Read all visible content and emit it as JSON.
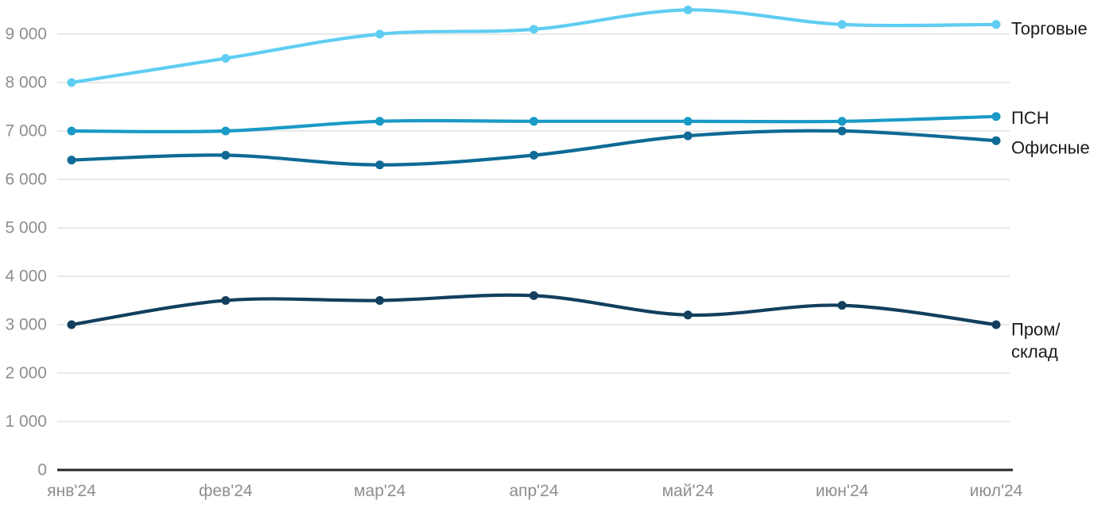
{
  "chart_data": {
    "type": "line",
    "title": "",
    "xlabel": "",
    "ylabel": "",
    "x_labels": [
      "янв'24",
      "фев'24",
      "мар'24",
      "апр'24",
      "май'24",
      "июн'24",
      "июл'24"
    ],
    "series": [
      {
        "name": "Торговые",
        "label_lines": [
          "Торговые"
        ],
        "color": "#5FCDF2",
        "values": [
          8000,
          8500,
          9000,
          9100,
          9500,
          9200,
          9200
        ]
      },
      {
        "name": "ПСН",
        "label_lines": [
          "ПСН"
        ],
        "color": "#1A9AC6",
        "values": [
          7000,
          7000,
          7200,
          7200,
          7200,
          7200,
          7300
        ]
      },
      {
        "name": "Офисные",
        "label_lines": [
          "Офисные"
        ],
        "color": "#0E6A96",
        "values": [
          6400,
          6500,
          6300,
          6500,
          6900,
          7000,
          6800
        ]
      },
      {
        "name": "Пром/склад",
        "label_lines": [
          "Пром/",
          "склад"
        ],
        "color": "#123F5E",
        "values": [
          3000,
          3500,
          3500,
          3600,
          3200,
          3400,
          3000
        ]
      }
    ],
    "yticks": [
      {
        "value": 0,
        "label": "0"
      },
      {
        "value": 1000,
        "label": "1 000"
      },
      {
        "value": 2000,
        "label": "2 000"
      },
      {
        "value": 3000,
        "label": "3 000"
      },
      {
        "value": 4000,
        "label": "4 000"
      },
      {
        "value": 5000,
        "label": "5 000"
      },
      {
        "value": 6000,
        "label": "6 000"
      },
      {
        "value": 7000,
        "label": "7 000"
      },
      {
        "value": 8000,
        "label": "8 000"
      },
      {
        "value": 9000,
        "label": "9 000"
      }
    ],
    "ylim": [
      0,
      9500
    ],
    "grid": true,
    "legend_position": "right-of-line-end",
    "colors": {
      "background": "#ffffff",
      "grid_line": "#e9e9e9",
      "axis_line": "#262626",
      "tick_label": "#8e8e8e",
      "series_label": "#1a1a1a"
    }
  }
}
